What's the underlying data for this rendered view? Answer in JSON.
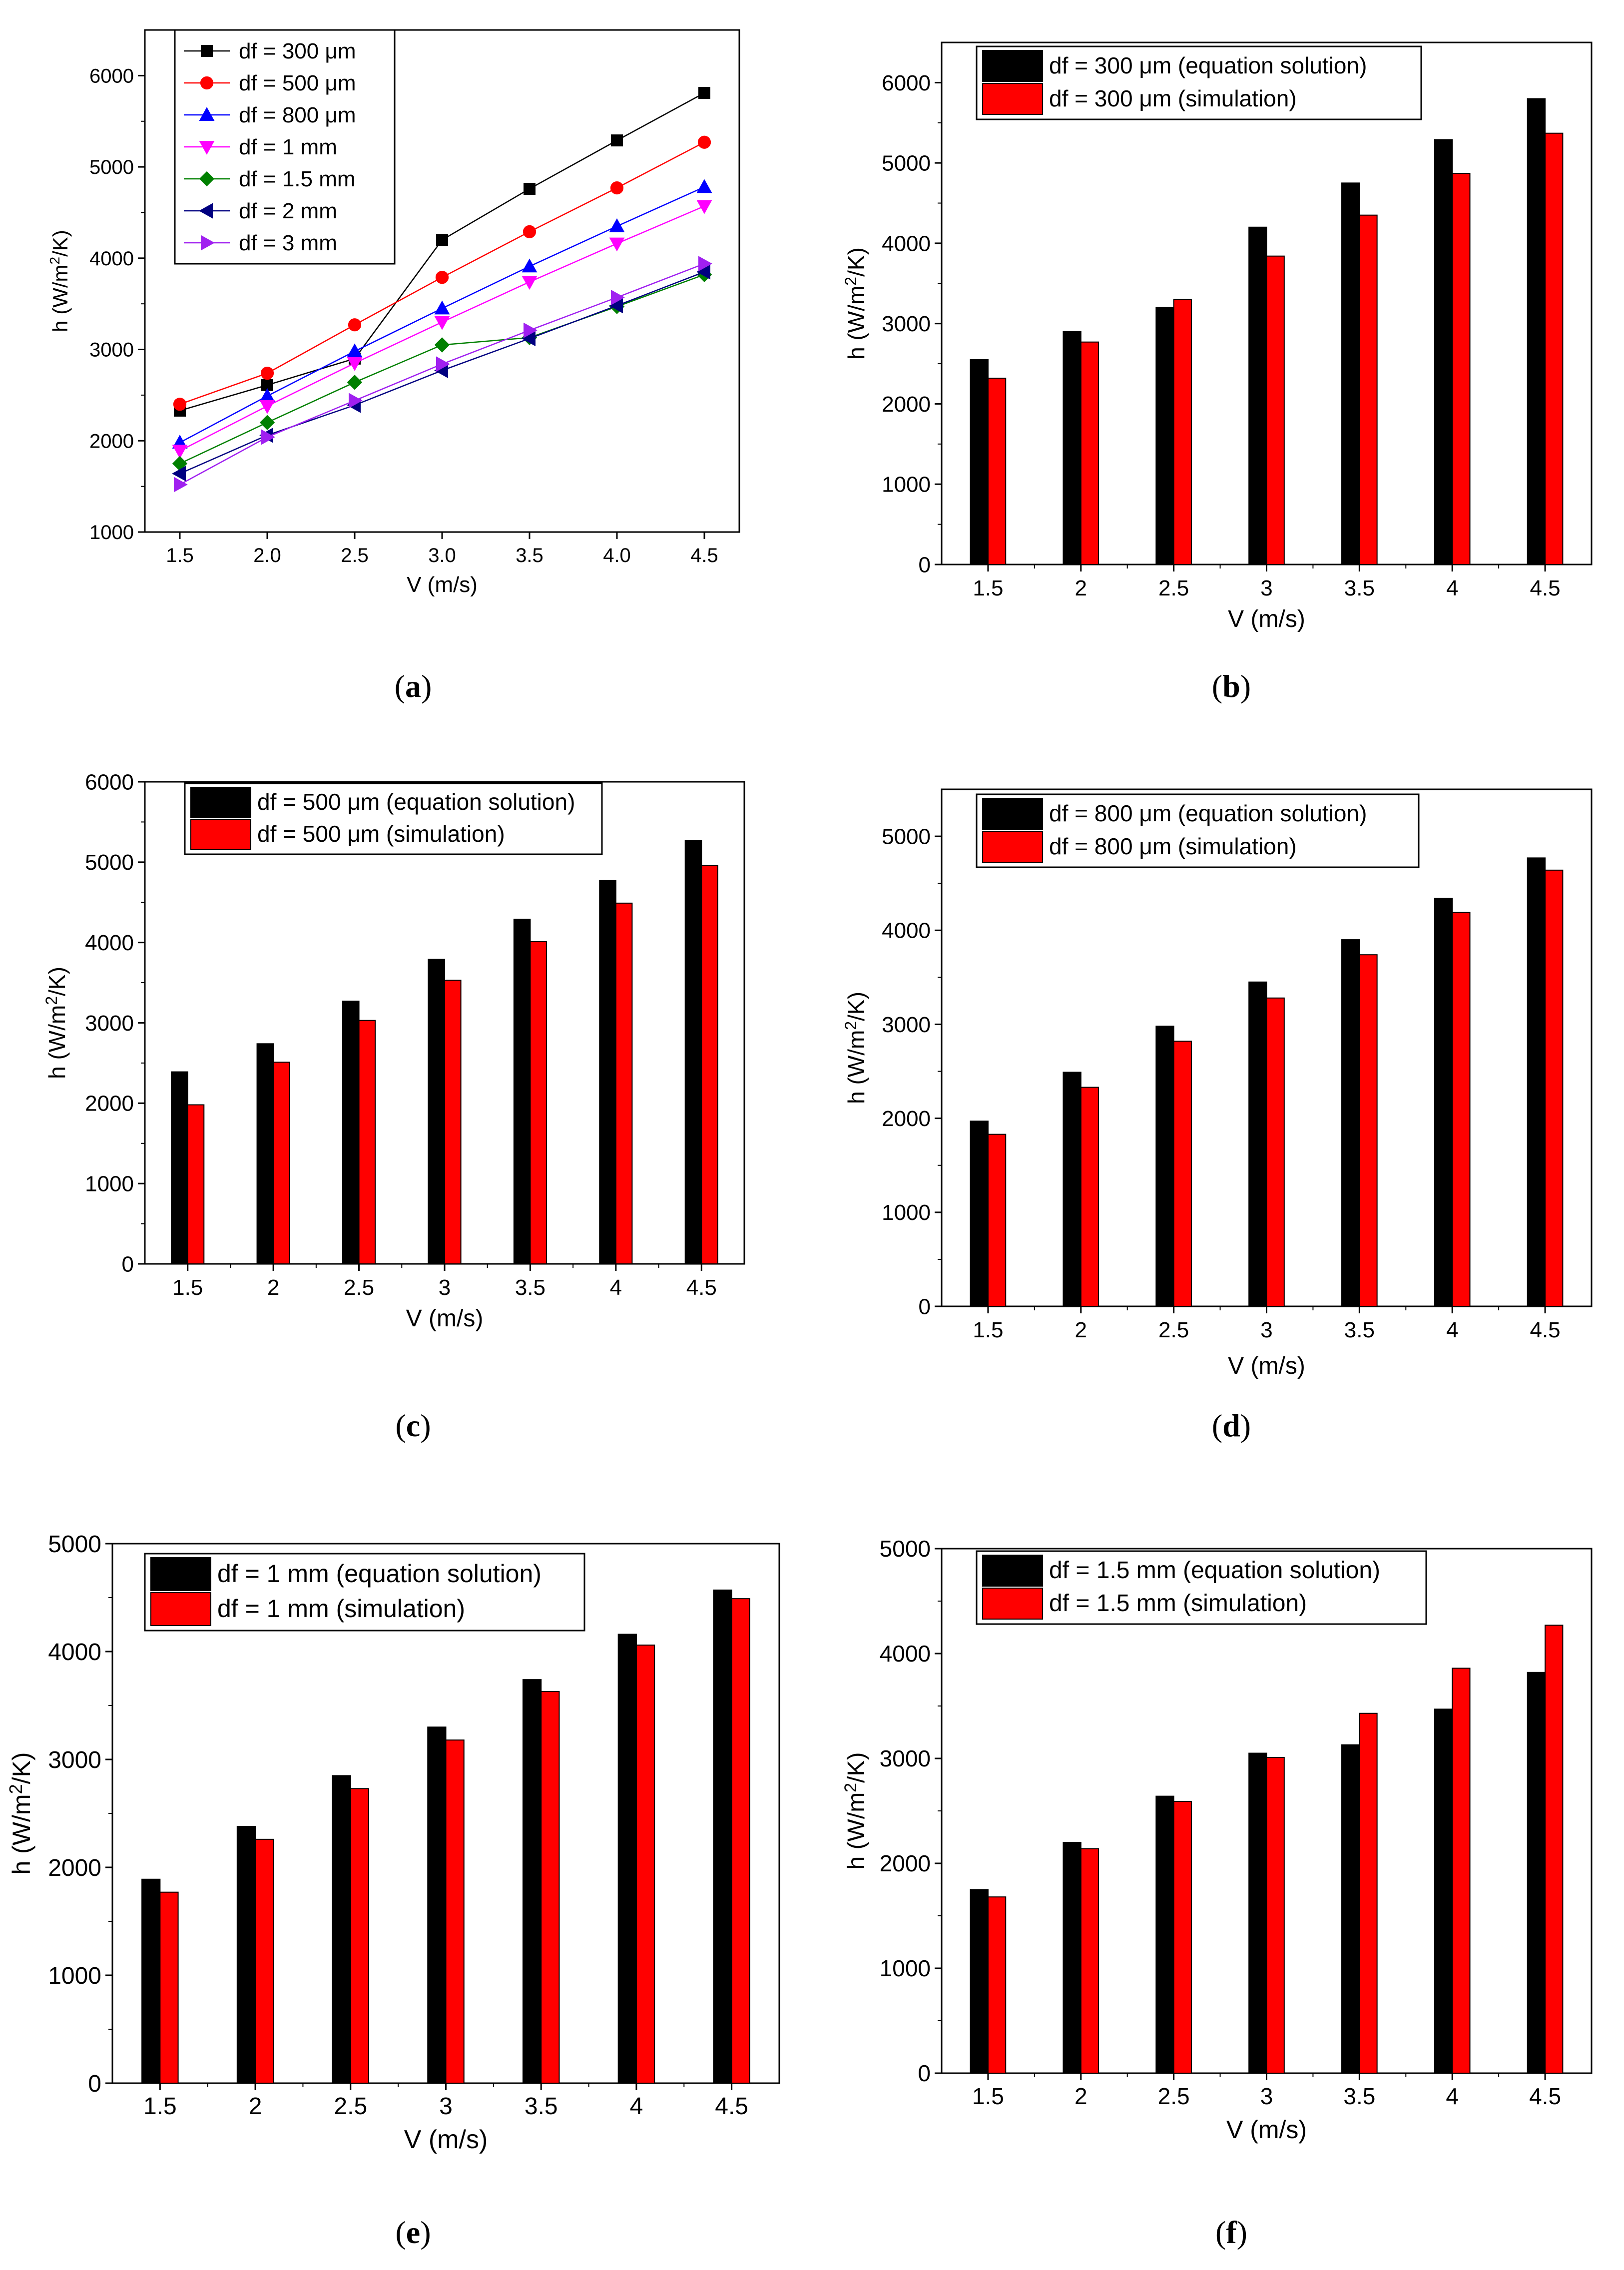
{
  "chart_data": [
    {
      "id": "a",
      "type": "line",
      "caption_letter": "a",
      "xlabel": "V (m/s)",
      "ylabel": "h (W/m²/K)",
      "ylabel_base": "h (W/m",
      "ylabel_sup": "2",
      "ylabel_tail": "/K)",
      "x": [
        1.5,
        2.0,
        2.5,
        3.0,
        3.5,
        4.0,
        4.5
      ],
      "x_tick_labels": [
        "1.5",
        "2.0",
        "2.5",
        "3.0",
        "3.5",
        "4.0",
        "4.5"
      ],
      "xlim": [
        1.3,
        4.7
      ],
      "ylim": [
        1000,
        6500
      ],
      "y_ticks": [
        1000,
        2000,
        3000,
        4000,
        5000,
        6000
      ],
      "y_tick_labels": [
        "1000",
        "2000",
        "3000",
        "4000",
        "5000",
        "6000"
      ],
      "legend_position": "top-left",
      "series": [
        {
          "name": "df = 300 μm",
          "color": "#000000",
          "marker": "square",
          "values": [
            2330,
            2610,
            2900,
            4200,
            4760,
            5290,
            5810
          ]
        },
        {
          "name": "df = 500 μm",
          "color": "#ff0000",
          "marker": "circle",
          "values": [
            2400,
            2740,
            3270,
            3790,
            4290,
            4770,
            5270
          ]
        },
        {
          "name": "df = 800 μm",
          "color": "#0000ff",
          "marker": "triangle-up",
          "values": [
            1980,
            2490,
            2980,
            3450,
            3910,
            4350,
            4780
          ]
        },
        {
          "name": "df = 1 mm",
          "color": "#ff00ff",
          "marker": "triangle-down",
          "values": [
            1890,
            2380,
            2850,
            3300,
            3740,
            4160,
            4570
          ]
        },
        {
          "name": "df = 1.5 mm",
          "color": "#008000",
          "marker": "diamond",
          "values": [
            1750,
            2200,
            2640,
            3050,
            3130,
            3470,
            3820
          ]
        },
        {
          "name": "df = 2 mm",
          "color": "#000080",
          "marker": "triangle-left",
          "values": [
            1640,
            2060,
            2390,
            2770,
            3120,
            3480,
            3850
          ]
        },
        {
          "name": "df = 3 mm",
          "color": "#a020f0",
          "marker": "triangle-right",
          "values": [
            1520,
            2040,
            2440,
            2840,
            3210,
            3570,
            3940
          ]
        }
      ]
    },
    {
      "id": "b",
      "type": "bar",
      "caption_letter": "b",
      "xlabel": "V (m/s)",
      "ylabel": "h (W/m²/K)",
      "ylabel_base": "h (W/m",
      "ylabel_sup": "2",
      "ylabel_tail": "/K)",
      "categories": [
        "1.5",
        "2",
        "2.5",
        "3",
        "3.5",
        "4",
        "4.5"
      ],
      "ylim": [
        0,
        6500
      ],
      "y_ticks": [
        0,
        1000,
        2000,
        3000,
        4000,
        5000,
        6000
      ],
      "y_tick_labels": [
        "0",
        "1000",
        "2000",
        "3000",
        "4000",
        "5000",
        "6000"
      ],
      "legend_position": "top-left",
      "series": [
        {
          "name": "df = 300 μm (equation solution)",
          "color": "#000000",
          "values": [
            2550,
            2900,
            3200,
            4200,
            4750,
            5290,
            5800
          ]
        },
        {
          "name": "df = 300 μm (simulation)",
          "color": "#ff0000",
          "values": [
            2320,
            2770,
            3300,
            3840,
            4350,
            4870,
            5370
          ]
        }
      ]
    },
    {
      "id": "c",
      "type": "bar",
      "caption_letter": "c",
      "xlabel": "V (m/s)",
      "ylabel": "h (W/m²/K)",
      "ylabel_base": "h (W/m",
      "ylabel_sup": "2",
      "ylabel_tail": "/K)",
      "categories": [
        "1.5",
        "2",
        "2.5",
        "3",
        "3.5",
        "4",
        "4.5"
      ],
      "ylim": [
        0,
        6000
      ],
      "y_ticks": [
        0,
        1000,
        2000,
        3000,
        4000,
        5000,
        6000
      ],
      "y_tick_labels": [
        "0",
        "1000",
        "2000",
        "3000",
        "4000",
        "5000",
        "6000"
      ],
      "legend_position": "top-left",
      "series": [
        {
          "name": "df = 500 μm (equation solution)",
          "color": "#000000",
          "values": [
            2390,
            2740,
            3270,
            3790,
            4290,
            4770,
            5270
          ]
        },
        {
          "name": "df = 500 μm (simulation)",
          "color": "#ff0000",
          "values": [
            1980,
            2510,
            3030,
            3530,
            4010,
            4490,
            4960
          ]
        }
      ]
    },
    {
      "id": "d",
      "type": "bar",
      "caption_letter": "d",
      "xlabel": "V (m/s)",
      "ylabel": "h (W/m²/K)",
      "ylabel_base": "h (W/m",
      "ylabel_sup": "2",
      "ylabel_tail": "/K)",
      "categories": [
        "1.5",
        "2",
        "2.5",
        "3",
        "3.5",
        "4",
        "4.5"
      ],
      "ylim": [
        0,
        5500
      ],
      "y_ticks": [
        0,
        1000,
        2000,
        3000,
        4000,
        5000
      ],
      "y_tick_labels": [
        "0",
        "1000",
        "2000",
        "3000",
        "4000",
        "5000"
      ],
      "legend_position": "top-left",
      "series": [
        {
          "name": "df = 800 μm (equation solution)",
          "color": "#000000",
          "values": [
            1970,
            2490,
            2980,
            3450,
            3900,
            4340,
            4770
          ]
        },
        {
          "name": "df = 800 μm (simulation)",
          "color": "#ff0000",
          "values": [
            1830,
            2330,
            2820,
            3280,
            3740,
            4190,
            4640
          ]
        }
      ]
    },
    {
      "id": "e",
      "type": "bar",
      "caption_letter": "e",
      "xlabel": "V (m/s)",
      "ylabel": "h (W/m²/K)",
      "ylabel_base": "h (W/m",
      "ylabel_sup": "2",
      "ylabel_tail": "/K)",
      "categories": [
        "1.5",
        "2",
        "2.5",
        "3",
        "3.5",
        "4",
        "4.5"
      ],
      "ylim": [
        0,
        5000
      ],
      "y_ticks": [
        0,
        1000,
        2000,
        3000,
        4000,
        5000
      ],
      "y_tick_labels": [
        "0",
        "1000",
        "2000",
        "3000",
        "4000",
        "5000"
      ],
      "legend_position": "top-left",
      "series": [
        {
          "name": "df = 1 mm (equation solution)",
          "color": "#000000",
          "values": [
            1890,
            2380,
            2850,
            3300,
            3740,
            4160,
            4570
          ]
        },
        {
          "name": "df = 1 mm (simulation)",
          "color": "#ff0000",
          "values": [
            1770,
            2260,
            2730,
            3180,
            3630,
            4060,
            4490
          ]
        }
      ]
    },
    {
      "id": "f",
      "type": "bar",
      "caption_letter": "f",
      "xlabel": "V (m/s)",
      "ylabel": "h (W/m²/K)",
      "ylabel_base": "h (W/m",
      "ylabel_sup": "2",
      "ylabel_tail": "/K)",
      "categories": [
        "1.5",
        "2",
        "2.5",
        "3",
        "3.5",
        "4",
        "4.5"
      ],
      "ylim": [
        0,
        5000
      ],
      "y_ticks": [
        0,
        1000,
        2000,
        3000,
        4000,
        5000
      ],
      "y_tick_labels": [
        "0",
        "1000",
        "2000",
        "3000",
        "4000",
        "5000"
      ],
      "legend_position": "top-left",
      "series": [
        {
          "name": "df = 1.5 mm (equation solution)",
          "color": "#000000",
          "values": [
            1750,
            2200,
            2640,
            3050,
            3130,
            3470,
            3820
          ]
        },
        {
          "name": "df = 1.5 mm (simulation)",
          "color": "#ff0000",
          "values": [
            1680,
            2140,
            2590,
            3010,
            3430,
            3860,
            4270
          ]
        }
      ]
    }
  ]
}
